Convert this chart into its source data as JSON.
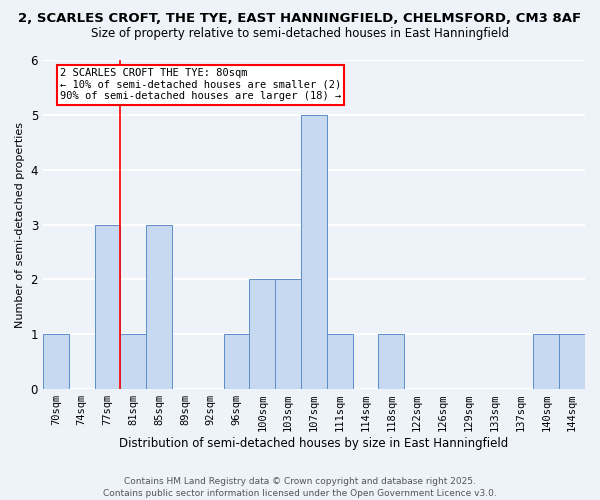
{
  "title1": "2, SCARLES CROFT, THE TYE, EAST HANNINGFIELD, CHELMSFORD, CM3 8AF",
  "title2": "Size of property relative to semi-detached houses in East Hanningfield",
  "xlabel": "Distribution of semi-detached houses by size in East Hanningfield",
  "ylabel": "Number of semi-detached properties",
  "categories": [
    "70sqm",
    "74sqm",
    "77sqm",
    "81sqm",
    "85sqm",
    "89sqm",
    "92sqm",
    "96sqm",
    "100sqm",
    "103sqm",
    "107sqm",
    "111sqm",
    "114sqm",
    "118sqm",
    "122sqm",
    "126sqm",
    "129sqm",
    "133sqm",
    "137sqm",
    "140sqm",
    "144sqm"
  ],
  "values": [
    1,
    0,
    3,
    1,
    3,
    0,
    0,
    1,
    2,
    2,
    5,
    1,
    0,
    1,
    0,
    0,
    0,
    0,
    0,
    1,
    1
  ],
  "bar_color": "#c6d9f0",
  "bar_edge_color": "#5b8dc8",
  "red_line_index": 3,
  "annotation_title": "2 SCARLES CROFT THE TYE: 80sqm",
  "annotation_line1": "← 10% of semi-detached houses are smaller (2)",
  "annotation_line2": "90% of semi-detached houses are larger (18) →",
  "footer": "Contains HM Land Registry data © Crown copyright and database right 2025.\nContains public sector information licensed under the Open Government Licence v3.0.",
  "ylim": [
    0,
    6
  ],
  "background_color": "#eef2f9",
  "grid_color": "#ffffff",
  "title1_fontsize": 9.5,
  "title2_fontsize": 8.5,
  "xlabel_fontsize": 8.5,
  "ylabel_fontsize": 8,
  "tick_fontsize": 7.5,
  "annotation_fontsize": 7.5,
  "footer_fontsize": 6.5
}
